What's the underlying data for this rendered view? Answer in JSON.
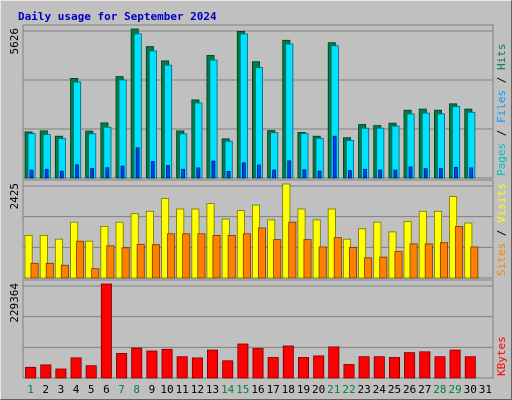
{
  "chart_data": {
    "type": "bar",
    "title": "Daily usage for September 2024",
    "categories": [
      "1",
      "2",
      "3",
      "4",
      "5",
      "6",
      "7",
      "8",
      "9",
      "10",
      "11",
      "12",
      "13",
      "14",
      "15",
      "16",
      "17",
      "18",
      "19",
      "20",
      "21",
      "22",
      "23",
      "24",
      "25",
      "26",
      "27",
      "28",
      "29",
      "30",
      "31"
    ],
    "weekend_days": [
      "1",
      "7",
      "8",
      "14",
      "15",
      "21",
      "22",
      "28",
      "29"
    ],
    "panels": [
      {
        "id": "hits",
        "ymax_label": "5626",
        "ylim": [
          0,
          5626
        ],
        "legend": [
          {
            "text": "Pages",
            "color": "#00c0c0"
          },
          {
            "text": " / ",
            "color": "#000000"
          },
          {
            "text": "Files",
            "color": "#00a0ff"
          },
          {
            "text": " / ",
            "color": "#000000"
          },
          {
            "text": "Hits",
            "color": "#008040"
          }
        ],
        "series": [
          {
            "name": "Hits",
            "color": "#008040",
            "values": [
              1740,
              1780,
              1580,
              3760,
              1770,
              2080,
              3830,
              5626,
              4960,
              4420,
              1780,
              2950,
              4630,
              1480,
              5540,
              4390,
              1790,
              5200,
              1720,
              1580,
              5110,
              1520,
              2020,
              1980,
              2070,
              2560,
              2600,
              2560,
              2800,
              2600,
              0
            ]
          },
          {
            "name": "Files",
            "color": "#00e0ff",
            "values": [
              1680,
              1640,
              1490,
              3620,
              1670,
              1920,
              3700,
              5446,
              4800,
              4260,
              1670,
              2830,
              4450,
              1390,
              5440,
              4170,
              1710,
              5060,
              1680,
              1500,
              4990,
              1420,
              1880,
              1880,
              1960,
              2420,
              2450,
              2420,
              2700,
              2480,
              0
            ]
          },
          {
            "name": "Pages",
            "color": "#0040ff",
            "values": [
              300,
              330,
              260,
              500,
              360,
              390,
              450,
              1140,
              620,
              470,
              330,
              380,
              640,
              250,
              570,
              490,
              300,
              650,
              310,
              260,
              1580,
              280,
              330,
              300,
              300,
              420,
              350,
              360,
              400,
              380,
              0
            ]
          }
        ]
      },
      {
        "id": "visits",
        "ymax_label": "2425",
        "ylim": [
          0,
          2425
        ],
        "legend": [
          {
            "text": "Sites",
            "color": "#ff8000"
          },
          {
            "text": " / ",
            "color": "#000000"
          },
          {
            "text": "Visits",
            "color": "#ffff00"
          }
        ],
        "series": [
          {
            "name": "Visits",
            "color": "#ffff00",
            "values": [
              1100,
              1100,
              1000,
              1440,
              950,
              1330,
              1440,
              1660,
              1720,
              2050,
              1780,
              1780,
              1920,
              1520,
              1740,
              1880,
              1500,
              2425,
              1780,
              1500,
              1780,
              1000,
              1270,
              1440,
              1190,
              1460,
              1720,
              1720,
              2100,
              1420,
              0
            ]
          },
          {
            "name": "Sites",
            "color": "#ff8000",
            "values": [
              380,
              380,
              330,
              950,
              240,
              830,
              780,
              870,
              860,
              1140,
              1140,
              1140,
              1100,
              1100,
              1140,
              1290,
              990,
              1440,
              990,
              800,
              1040,
              790,
              520,
              540,
              680,
              880,
              880,
              910,
              1330,
              800,
              0
            ]
          }
        ]
      },
      {
        "id": "kbytes",
        "ymax_label": "229364",
        "ylim": [
          0,
          229364
        ],
        "legend": [
          {
            "text": "KBytes",
            "color": "#ff0000"
          }
        ],
        "series": [
          {
            "name": "KBytes",
            "color": "#ff0000",
            "values": [
              26000,
              32000,
              22000,
              49000,
              30000,
              229364,
              60000,
              73000,
              66000,
              70000,
              52000,
              49000,
              68000,
              42000,
              83000,
              72000,
              50000,
              78000,
              50000,
              54000,
              76000,
              33000,
              52000,
              52000,
              50000,
              62000,
              64000,
              52000,
              68000,
              52000,
              0
            ]
          }
        ]
      }
    ],
    "grid": true
  }
}
